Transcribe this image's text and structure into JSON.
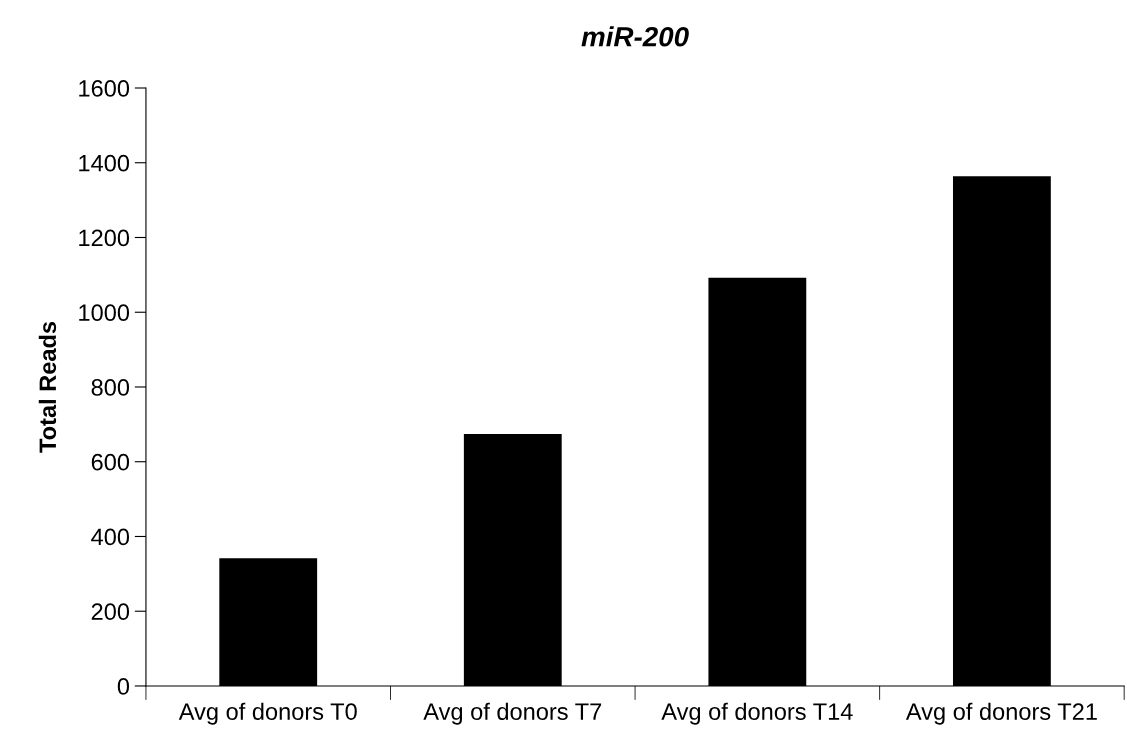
{
  "chart_data": {
    "type": "bar",
    "title": "miR-200",
    "ylabel": "Total Reads",
    "categories": [
      "Avg of donors T0",
      "Avg of donors T7",
      "Avg of donors T14",
      "Avg of donors T21"
    ],
    "values": [
      342,
      674,
      1092,
      1364
    ],
    "color": "#000000",
    "ylim": [
      0,
      1600
    ],
    "yticks": [
      0,
      200,
      400,
      600,
      800,
      1000,
      1200,
      1400,
      1600
    ],
    "grid": false,
    "legend": false
  }
}
